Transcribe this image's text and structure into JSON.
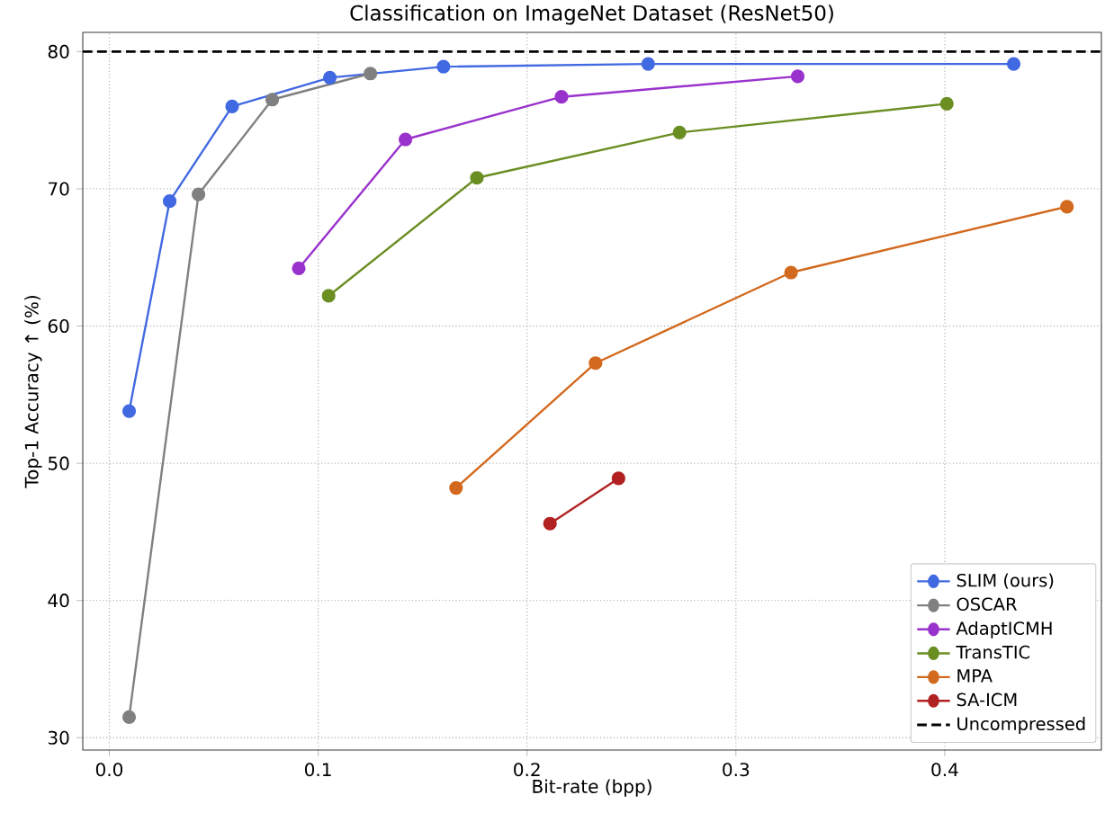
{
  "chart_data": {
    "type": "line",
    "title": "Classification on ImageNet Dataset (ResNet50)",
    "xlabel": "Bit-rate (bpp)",
    "ylabel": "Top-1 Accuracy ↑ (%)",
    "xlim": [
      -0.0127,
      0.475
    ],
    "ylim": [
      29.1,
      81.4
    ],
    "xticks": [
      {
        "value": 0,
        "label": "0.0"
      },
      {
        "value": 0.1,
        "label": "0.1"
      },
      {
        "value": 0.2,
        "label": "0.2"
      },
      {
        "value": 0.3,
        "label": "0.3"
      },
      {
        "value": 0.4,
        "label": "0.4"
      }
    ],
    "yticks": [
      30,
      40,
      50,
      60,
      70,
      80
    ],
    "grid": true,
    "legend": "bottom right",
    "marker": "circle",
    "line_style": "solid",
    "series": [
      {
        "name": "SLIM (ours)",
        "color": "#4169e1",
        "x": [
          0.0095,
          0.0289,
          0.0588,
          0.1056,
          0.16,
          0.258,
          0.433
        ],
        "values": [
          53.8,
          69.1,
          76.0,
          78.1,
          78.9,
          79.1,
          79.1
        ]
      },
      {
        "name": "OSCAR",
        "color": "#808080",
        "x": [
          0.0095,
          0.0427,
          0.078,
          0.125
        ],
        "values": [
          31.5,
          69.6,
          76.5,
          78.4
        ]
      },
      {
        "name": "AdaptICMH",
        "color": "#9932cc",
        "x": [
          0.0907,
          0.1418,
          0.2165,
          0.3296
        ],
        "values": [
          64.2,
          73.6,
          76.7,
          78.2
        ]
      },
      {
        "name": "TransTIC",
        "color": "#6b8e23",
        "x": [
          0.105,
          0.176,
          0.273,
          0.401
        ],
        "values": [
          62.2,
          70.8,
          74.1,
          76.2
        ]
      },
      {
        "name": "MPA",
        "color": "#d2691e",
        "x": [
          0.166,
          0.2328,
          0.3264,
          0.4585
        ],
        "values": [
          48.2,
          57.3,
          63.9,
          68.7
        ]
      },
      {
        "name": "SA-ICM",
        "color": "#b22222",
        "x": [
          0.211,
          0.2438
        ],
        "values": [
          45.6,
          48.9
        ]
      }
    ],
    "ref_lines": [
      {
        "axis": "y",
        "value": 80,
        "label": "Uncompressed",
        "color": "#000000",
        "line_style": "dashed"
      }
    ]
  }
}
